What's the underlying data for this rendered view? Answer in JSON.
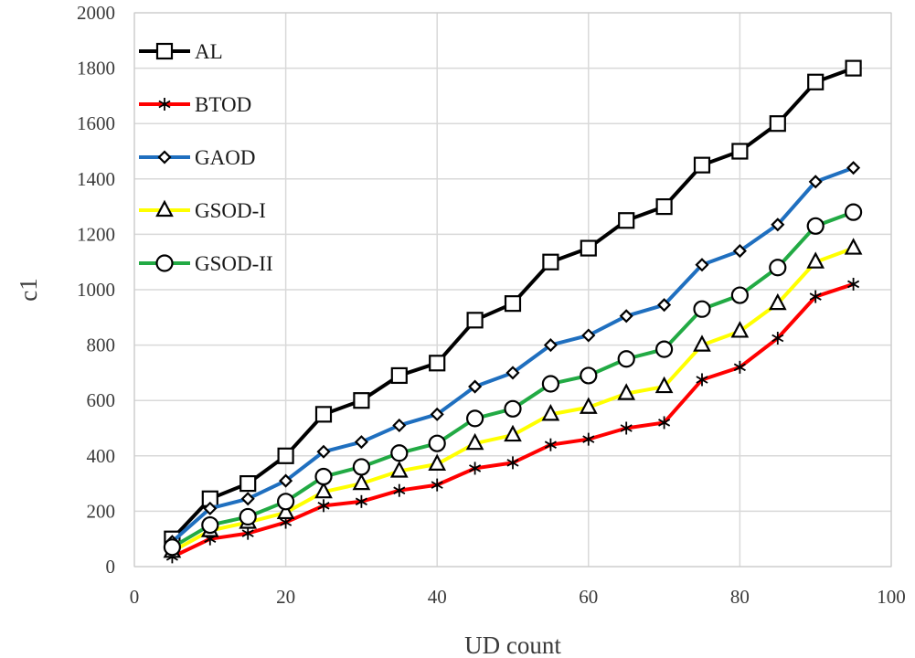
{
  "chart_data": {
    "type": "line",
    "title": "",
    "xlabel": "UD count",
    "ylabel": "c1",
    "xlim": [
      0,
      100
    ],
    "ylim": [
      0,
      2000
    ],
    "xticks": [
      0,
      20,
      40,
      60,
      80,
      100
    ],
    "yticks": [
      0,
      200,
      400,
      600,
      800,
      1000,
      1200,
      1400,
      1600,
      1800,
      2000
    ],
    "grid": true,
    "legend_position": "top-left",
    "x": [
      5,
      10,
      15,
      20,
      25,
      30,
      35,
      40,
      45,
      50,
      55,
      60,
      65,
      70,
      75,
      80,
      85,
      90,
      95
    ],
    "series": [
      {
        "name": "AL",
        "color": "#000000",
        "marker": "square",
        "values": [
          100,
          245,
          300,
          400,
          550,
          600,
          690,
          735,
          890,
          950,
          1100,
          1150,
          1250,
          1300,
          1450,
          1500,
          1600,
          1750,
          1800
        ]
      },
      {
        "name": "BTOD",
        "color": "#ff0000",
        "marker": "asterisk",
        "values": [
          35,
          100,
          120,
          160,
          220,
          235,
          275,
          295,
          355,
          375,
          440,
          460,
          500,
          520,
          675,
          720,
          825,
          975,
          1020
        ]
      },
      {
        "name": "GAOD",
        "color": "#1f6fbf",
        "marker": "diamond",
        "values": [
          90,
          210,
          245,
          310,
          415,
          450,
          510,
          550,
          650,
          700,
          800,
          835,
          905,
          945,
          1090,
          1140,
          1235,
          1390,
          1440
        ]
      },
      {
        "name": "GSOD-I",
        "color": "#ffff00",
        "marker": "triangle",
        "values": [
          55,
          130,
          160,
          195,
          270,
          300,
          345,
          370,
          445,
          475,
          550,
          575,
          625,
          650,
          800,
          850,
          950,
          1100,
          1150
        ]
      },
      {
        "name": "GSOD-II",
        "color": "#22aa44",
        "marker": "circle",
        "values": [
          70,
          150,
          180,
          235,
          325,
          360,
          410,
          445,
          535,
          570,
          660,
          690,
          750,
          785,
          930,
          980,
          1080,
          1230,
          1280
        ]
      }
    ]
  }
}
